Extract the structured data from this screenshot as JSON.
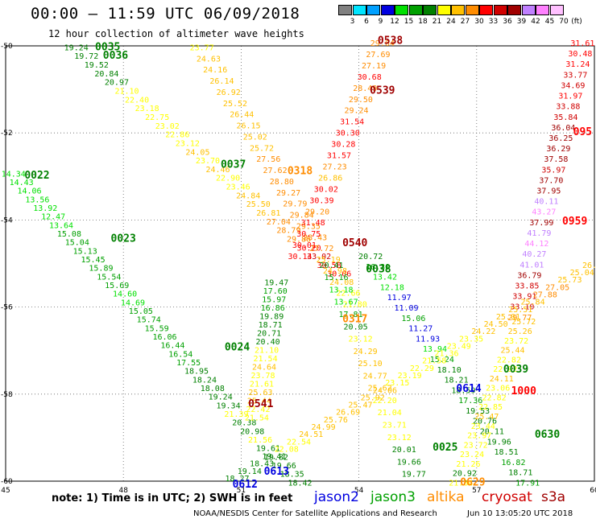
{
  "header": {
    "title": "00:00 – 11:59 UTC 06/09/2018",
    "subtitle": "12 hour collection of altimeter wave heights"
  },
  "colorbar": {
    "unit_label": "(ft)",
    "ticks": [
      "3",
      "6",
      "9",
      "12",
      "15",
      "18",
      "21",
      "24",
      "27",
      "30",
      "33",
      "36",
      "39",
      "42",
      "45",
      "70"
    ],
    "colors": [
      "#808080",
      "#00e5ff",
      "#00a0ff",
      "#0000e0",
      "#00e000",
      "#00a000",
      "#008000",
      "#ffff00",
      "#ffc000",
      "#ff8c00",
      "#ff0000",
      "#d00000",
      "#a00000",
      "#c080ff",
      "#ff80ff",
      "#ffc0ff"
    ]
  },
  "footer": {
    "note": "note: 1) Time is in UTC; 2) SWH is in feet",
    "legend": [
      {
        "name": "jason2",
        "color": "#0000e0"
      },
      {
        "name": "jason3",
        "color": "#00a000"
      },
      {
        "name": "altika",
        "color": "#ff8c00"
      },
      {
        "name": "cryosat",
        "color": "#d00000"
      },
      {
        "name": "s3a",
        "color": "#a00000"
      }
    ],
    "credit": "NOAA/NESDIS Center for Satellite Applications and Research",
    "timestamp": "Jun 10 13:05:20 UTC 2018"
  },
  "chart_data": {
    "type": "scatter",
    "xlim": [
      45,
      60
    ],
    "ylim": [
      -60,
      -50
    ],
    "xticks": [
      "45",
      "48",
      "51",
      "54",
      "57",
      "60"
    ],
    "yticks": [
      "-50",
      "-52",
      "-54",
      "-56",
      "-58",
      "-60"
    ],
    "grid": "dotted",
    "color_scale": {
      "bounds": [
        0,
        3,
        6,
        9,
        12,
        15,
        18,
        21,
        24,
        27,
        30,
        33,
        36,
        39,
        42,
        45,
        70
      ],
      "colors": [
        "#808080",
        "#00e5ff",
        "#00a0ff",
        "#0000e0",
        "#00e000",
        "#00a000",
        "#008000",
        "#ffff00",
        "#ffc000",
        "#ff8c00",
        "#ff0000",
        "#d00000",
        "#a00000",
        "#c080ff",
        "#ff80ff",
        "#ffc0ff"
      ]
    },
    "pass_labels": [
      {
        "text": "0035",
        "x": 47.6,
        "y": -50.1,
        "color": "#008000"
      },
      {
        "text": "0036",
        "x": 47.8,
        "y": -50.3,
        "color": "#008000"
      },
      {
        "text": "0538",
        "x": 54.8,
        "y": -49.95,
        "color": "#a00000"
      },
      {
        "text": "0539",
        "x": 54.6,
        "y": -51.1,
        "color": "#a00000"
      },
      {
        "text": "0037",
        "x": 50.8,
        "y": -52.8,
        "color": "#008000"
      },
      {
        "text": "0318",
        "x": 52.5,
        "y": -52.95,
        "color": "#ff8c00"
      },
      {
        "text": "0022",
        "x": 45.8,
        "y": -53.05,
        "color": "#008000"
      },
      {
        "text": "0023",
        "x": 48.0,
        "y": -54.5,
        "color": "#008000"
      },
      {
        "text": "0540",
        "x": 53.9,
        "y": -54.6,
        "color": "#a00000"
      },
      {
        "text": "0038",
        "x": 54.5,
        "y": -55.2,
        "color": "#008000"
      },
      {
        "text": "0317",
        "x": 53.9,
        "y": -56.35,
        "color": "#ff8c00"
      },
      {
        "text": "0024",
        "x": 50.9,
        "y": -57.0,
        "color": "#008000"
      },
      {
        "text": "0614",
        "x": 56.8,
        "y": -57.95,
        "color": "#0000e0"
      },
      {
        "text": "0039",
        "x": 58.0,
        "y": -57.5,
        "color": "#008000"
      },
      {
        "text": "1000",
        "x": 58.2,
        "y": -58.0,
        "color": "#ff0000"
      },
      {
        "text": "0541",
        "x": 51.5,
        "y": -58.3,
        "color": "#a00000"
      },
      {
        "text": "0630",
        "x": 58.8,
        "y": -59.0,
        "color": "#008000"
      },
      {
        "text": "0025",
        "x": 56.2,
        "y": -59.3,
        "color": "#008000"
      },
      {
        "text": "0613",
        "x": 51.9,
        "y": -59.85,
        "color": "#0000e0"
      },
      {
        "text": "0612",
        "x": 51.1,
        "y": -60.15,
        "color": "#0000e0"
      },
      {
        "text": "0629",
        "x": 56.9,
        "y": -60.1,
        "color": "#ff8c00"
      },
      {
        "text": "0959",
        "x": 59.5,
        "y": -54.1,
        "color": "#ff0000"
      },
      {
        "text": "095",
        "x": 59.7,
        "y": -52.05,
        "color": "#ff0000"
      }
    ],
    "tracks": [
      {
        "name": "0035",
        "x0": 46.8,
        "y0": -50.1,
        "x1": 53.5,
        "y1": -55.3,
        "values": [
          19.24,
          19.72,
          19.52,
          20.84,
          20.97,
          21.1,
          22.4,
          23.18,
          22.75,
          23.02,
          22.86,
          23.12,
          24.05,
          23.7,
          24.46,
          22.9,
          23.46,
          24.84,
          25.5,
          26.81,
          27.04,
          28.79,
          29.86,
          30.2,
          33.02,
          30.58,
          30.06
        ]
      },
      {
        "name": "0036",
        "x0": 50.0,
        "y0": -50.1,
        "x1": 53.9,
        "y1": -56.0,
        "values": [
          23.77,
          24.63,
          24.16,
          26.14,
          26.92,
          25.52,
          26.44,
          26.15,
          25.02,
          25.72,
          27.56,
          27.62,
          28.8,
          29.27,
          29.79,
          29.84,
          29.35,
          28.43,
          27.72,
          25.19,
          24.98,
          24.08,
          22.66,
          21.8
        ]
      },
      {
        "name": "0538",
        "x0": 54.6,
        "y0": -50.0,
        "x1": 52.5,
        "y1": -54.9,
        "values": [
          29.64,
          27.69,
          27.19,
          30.68,
          28.49,
          29.5,
          29.24,
          31.54,
          30.3,
          30.28,
          31.57,
          27.23,
          26.86,
          30.02,
          30.39,
          29.2,
          31.48,
          30.75,
          30.01,
          30.14
        ]
      },
      {
        "name": "0539",
        "x0": 59.7,
        "y0": -50.0,
        "x1": 58.1,
        "y1": -56.3,
        "values": [
          31.61,
          30.48,
          31.24,
          33.77,
          34.69,
          31.97,
          33.88,
          35.84,
          36.04,
          36.25,
          36.29,
          37.58,
          35.97,
          37.7,
          37.95,
          40.11,
          43.27,
          37.99,
          41.79,
          44.12,
          40.27,
          41.01,
          36.79,
          33.85,
          33.91,
          33.1,
          29.77
        ]
      },
      {
        "name": "0022",
        "x0": 45.2,
        "y0": -53.0,
        "x1": 52.5,
        "y1": -60.1,
        "values": [
          14.34,
          14.43,
          14.06,
          13.56,
          13.92,
          12.47,
          13.64,
          15.08,
          15.04,
          15.13,
          15.45,
          15.89,
          15.54,
          15.69,
          14.6,
          14.69,
          15.05,
          15.74,
          15.59,
          16.06,
          16.44,
          16.54,
          17.55,
          18.95,
          18.24,
          18.08,
          19.24,
          19.34,
          21.39,
          20.38,
          20.98,
          21.56,
          19.61,
          19.82,
          19.66,
          18.35,
          18.42
        ]
      },
      {
        "name": "0038",
        "x0": 54.3,
        "y0": -54.9,
        "x1": 58.3,
        "y1": -60.1,
        "values": [
          20.72,
          16.3,
          13.42,
          12.18,
          11.97,
          11.09,
          15.06,
          11.27,
          11.93,
          13.94,
          15.24,
          18.1,
          18.21,
          18.59,
          17.36,
          19.53,
          20.76,
          20.11,
          19.96,
          18.51,
          16.82,
          18.71,
          17.91
        ]
      },
      {
        "name": "0317",
        "x0": 53.3,
        "y0": -55.1,
        "x1": 55.4,
        "y1": -59.9,
        "values": [
          20.41,
          15.16,
          13.18,
          13.67,
          17.81,
          20.05,
          23.12,
          24.29,
          25.1,
          24.77,
          25.62,
          22.2,
          21.04,
          23.71,
          23.12,
          20.01,
          19.66,
          19.77
        ]
      },
      {
        "name": "0024",
        "x0": 51.9,
        "y0": -55.5,
        "x1": 51.4,
        "y1": -58.6,
        "values": [
          19.47,
          17.6,
          15.97,
          16.86,
          19.89,
          18.71,
          20.71,
          20.4,
          21.1,
          21.54,
          24.64,
          23.78,
          21.61,
          25.63,
          25.44,
          22.42,
          21.54
        ]
      },
      {
        "name": "0613",
        "x0": 50.9,
        "y0": -60.0,
        "x1": 60.0,
        "y1": -55.1,
        "values": [
          18.27,
          19.14,
          18.43,
          19.41,
          22.08,
          22.54,
          24.51,
          24.99,
          25.76,
          26.69,
          25.47,
          25.92,
          24.06,
          23.15,
          23.19,
          22.29,
          21.58,
          21.36,
          23.49,
          23.35,
          24.22,
          24.5,
          25.01,
          25.51,
          25.84,
          27.88,
          27.05,
          25.73,
          25.04,
          26.85
        ]
      },
      {
        "name": "0629",
        "x0": 56.6,
        "y0": -60.1,
        "x1": 58.2,
        "y1": -56.4,
        "values": [
          21.84,
          20.92,
          21.26,
          23.24,
          23.72,
          23.97,
          23.44,
          25.47,
          22.85,
          22.82,
          23.06,
          24.11,
          22.92,
          22.82,
          25.44,
          23.72,
          25.26,
          25.72
        ]
      }
    ]
  }
}
